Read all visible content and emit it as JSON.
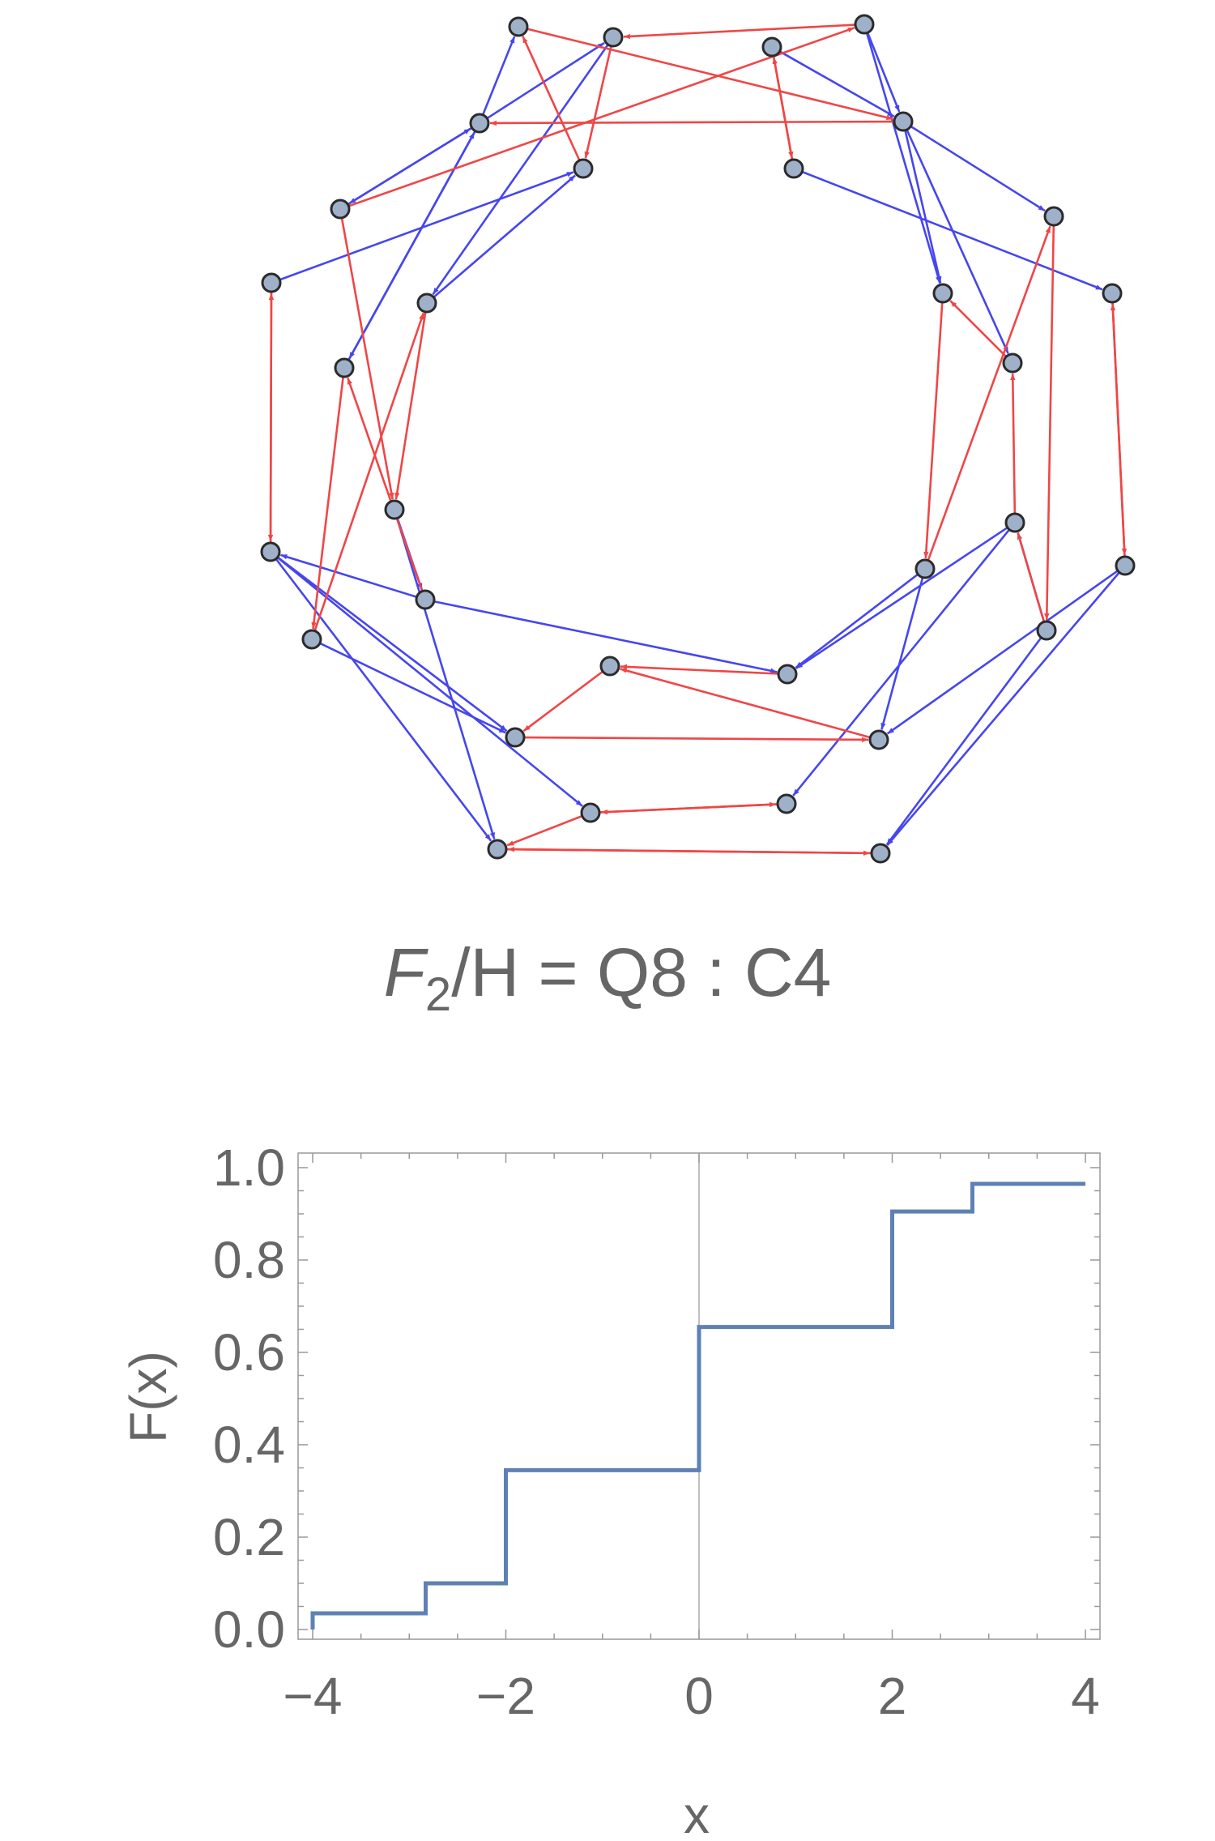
{
  "caption": {
    "group_symbol": "F",
    "group_subscript": "2",
    "rest": "/H = Q8 : C4"
  },
  "graph": {
    "node_fill": "#9fb1c9",
    "node_stroke": "#2b2b2b",
    "blue_edge_color": "#4646ef",
    "red_edge_color": "#ef4646",
    "nodes": [
      [
        "n1",
        640,
        33
      ],
      [
        "n2",
        757,
        46
      ],
      [
        "n3",
        953,
        58
      ],
      [
        "n4",
        1067,
        30
      ],
      [
        "n5",
        592,
        152
      ],
      [
        "n6",
        720,
        208
      ],
      [
        "n7",
        980,
        208
      ],
      [
        "n8",
        1115,
        150
      ],
      [
        "n9",
        420,
        258
      ],
      [
        "n10",
        335,
        349
      ],
      [
        "n11",
        527,
        374
      ],
      [
        "n12",
        425,
        454
      ],
      [
        "n13",
        1164,
        362
      ],
      [
        "n14",
        1301,
        267
      ],
      [
        "n15",
        1373,
        362
      ],
      [
        "n16",
        1250,
        448
      ],
      [
        "n17",
        487,
        629
      ],
      [
        "n18",
        334,
        681
      ],
      [
        "n19",
        525,
        740
      ],
      [
        "n20",
        385,
        789
      ],
      [
        "n21",
        1253,
        645
      ],
      [
        "n22",
        1142,
        702
      ],
      [
        "n23",
        1389,
        698
      ],
      [
        "n24",
        1292,
        778
      ],
      [
        "n25",
        753,
        822
      ],
      [
        "n26",
        972,
        832
      ],
      [
        "n27",
        636,
        910
      ],
      [
        "n28",
        1085,
        913
      ],
      [
        "n29",
        729,
        1003
      ],
      [
        "n30",
        971,
        992
      ],
      [
        "n31",
        614,
        1048
      ],
      [
        "n32",
        1087,
        1053
      ]
    ],
    "blue_edges": [
      [
        "n5",
        "n1"
      ],
      [
        "n5",
        "n2"
      ],
      [
        "n5",
        "n9"
      ],
      [
        "n9",
        "n5"
      ],
      [
        "n12",
        "n5"
      ],
      [
        "n5",
        "n12"
      ],
      [
        "n10",
        "n6"
      ],
      [
        "n11",
        "n6"
      ],
      [
        "n4",
        "n8"
      ],
      [
        "n3",
        "n8"
      ],
      [
        "n8",
        "n13"
      ],
      [
        "n4",
        "n13"
      ],
      [
        "n8",
        "n14"
      ],
      [
        "n7",
        "n15"
      ],
      [
        "n8",
        "n16"
      ],
      [
        "n2",
        "n11"
      ],
      [
        "n17",
        "n19"
      ],
      [
        "n18",
        "n29"
      ],
      [
        "n18",
        "n27"
      ],
      [
        "n20",
        "n27"
      ],
      [
        "n19",
        "n18"
      ],
      [
        "n17",
        "n31"
      ],
      [
        "n18",
        "n31"
      ],
      [
        "n19",
        "n26"
      ],
      [
        "n22",
        "n26"
      ],
      [
        "n21",
        "n30"
      ],
      [
        "n22",
        "n28"
      ],
      [
        "n23",
        "n28"
      ],
      [
        "n23",
        "n32"
      ],
      [
        "n24",
        "n32"
      ],
      [
        "n21",
        "n26"
      ],
      [
        "n24",
        "n21"
      ]
    ],
    "red_edges": [
      [
        "n4",
        "n2"
      ],
      [
        "n2",
        "n6"
      ],
      [
        "n1",
        "n8"
      ],
      [
        "n8",
        "n5"
      ],
      [
        "n9",
        "n4"
      ],
      [
        "n3",
        "n7"
      ],
      [
        "n6",
        "n1"
      ],
      [
        "n7",
        "n3"
      ],
      [
        "n10",
        "n18"
      ],
      [
        "n9",
        "n17"
      ],
      [
        "n12",
        "n20"
      ],
      [
        "n18",
        "n10"
      ],
      [
        "n11",
        "n17"
      ],
      [
        "n19",
        "n12"
      ],
      [
        "n20",
        "n11"
      ],
      [
        "n13",
        "n22"
      ],
      [
        "n14",
        "n24"
      ],
      [
        "n15",
        "n23"
      ],
      [
        "n16",
        "n13"
      ],
      [
        "n22",
        "n14"
      ],
      [
        "n21",
        "n16"
      ],
      [
        "n23",
        "n15"
      ],
      [
        "n24",
        "n21"
      ],
      [
        "n26",
        "n25"
      ],
      [
        "n25",
        "n27"
      ],
      [
        "n27",
        "n28"
      ],
      [
        "n28",
        "n25"
      ],
      [
        "n29",
        "n30"
      ],
      [
        "n30",
        "n29"
      ],
      [
        "n31",
        "n32"
      ],
      [
        "n32",
        "n31"
      ],
      [
        "n29",
        "n31"
      ]
    ]
  },
  "chart_data": {
    "type": "line",
    "style": "step",
    "xlabel": "x",
    "ylabel": "F(x)",
    "xlim": [
      -4,
      4
    ],
    "ylim": [
      0,
      1
    ],
    "xticks": [
      -4,
      -2,
      0,
      2,
      4
    ],
    "xtick_labels": [
      "−4",
      "−2",
      "0",
      "2",
      "4"
    ],
    "yticks": [
      0,
      0.2,
      0.4,
      0.6,
      0.8,
      1.0
    ],
    "ytick_labels": [
      "0.0",
      "0.2",
      "0.4",
      "0.6",
      "0.8",
      "1.0"
    ],
    "grid": false,
    "line_color": "#5e81b5",
    "series": [
      {
        "x": [
          -4,
          -4,
          -2.83,
          -2.83,
          -2,
          -2,
          0,
          0,
          2,
          2,
          2.83,
          2.83,
          4
        ],
        "y": [
          0,
          0.035,
          0.035,
          0.1,
          0.1,
          0.345,
          0.345,
          0.655,
          0.655,
          0.905,
          0.905,
          0.965,
          0.965
        ]
      }
    ]
  }
}
